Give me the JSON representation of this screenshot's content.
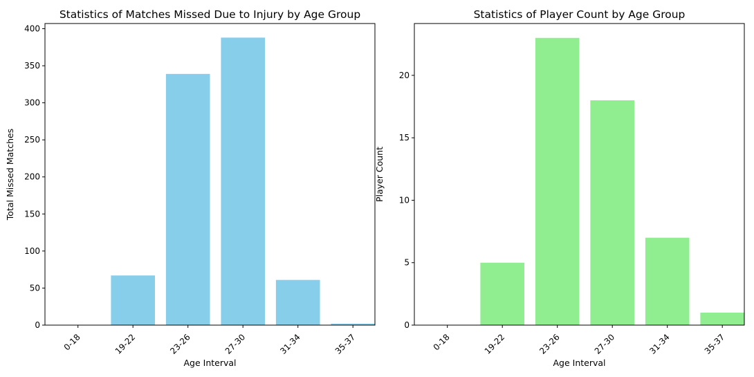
{
  "chart_data": [
    {
      "type": "bar",
      "title": "Statistics of Matches Missed Due to Injury by Age Group",
      "xlabel": "Age Interval",
      "ylabel": "Total Missed Matches",
      "categories": [
        "0-18",
        "19-22",
        "23-26",
        "27-30",
        "31-34",
        "35-37"
      ],
      "values": [
        0,
        67,
        339,
        388,
        61,
        2
      ],
      "ylim": [
        0,
        407
      ],
      "yticks": [
        0,
        50,
        100,
        150,
        200,
        250,
        300,
        350,
        400
      ],
      "color": "#87ceeb",
      "grid": false
    },
    {
      "type": "bar",
      "title": "Statistics of Player Count by Age Group",
      "xlabel": "Age Interval",
      "ylabel": "Player Count",
      "categories": [
        "0-18",
        "19-22",
        "23-26",
        "27-30",
        "31-34",
        "35-37"
      ],
      "values": [
        0,
        5,
        23,
        18,
        7,
        1
      ],
      "ylim": [
        0,
        24.15
      ],
      "yticks": [
        0,
        5,
        10,
        15,
        20
      ],
      "color": "#90ee90",
      "grid": false
    }
  ]
}
